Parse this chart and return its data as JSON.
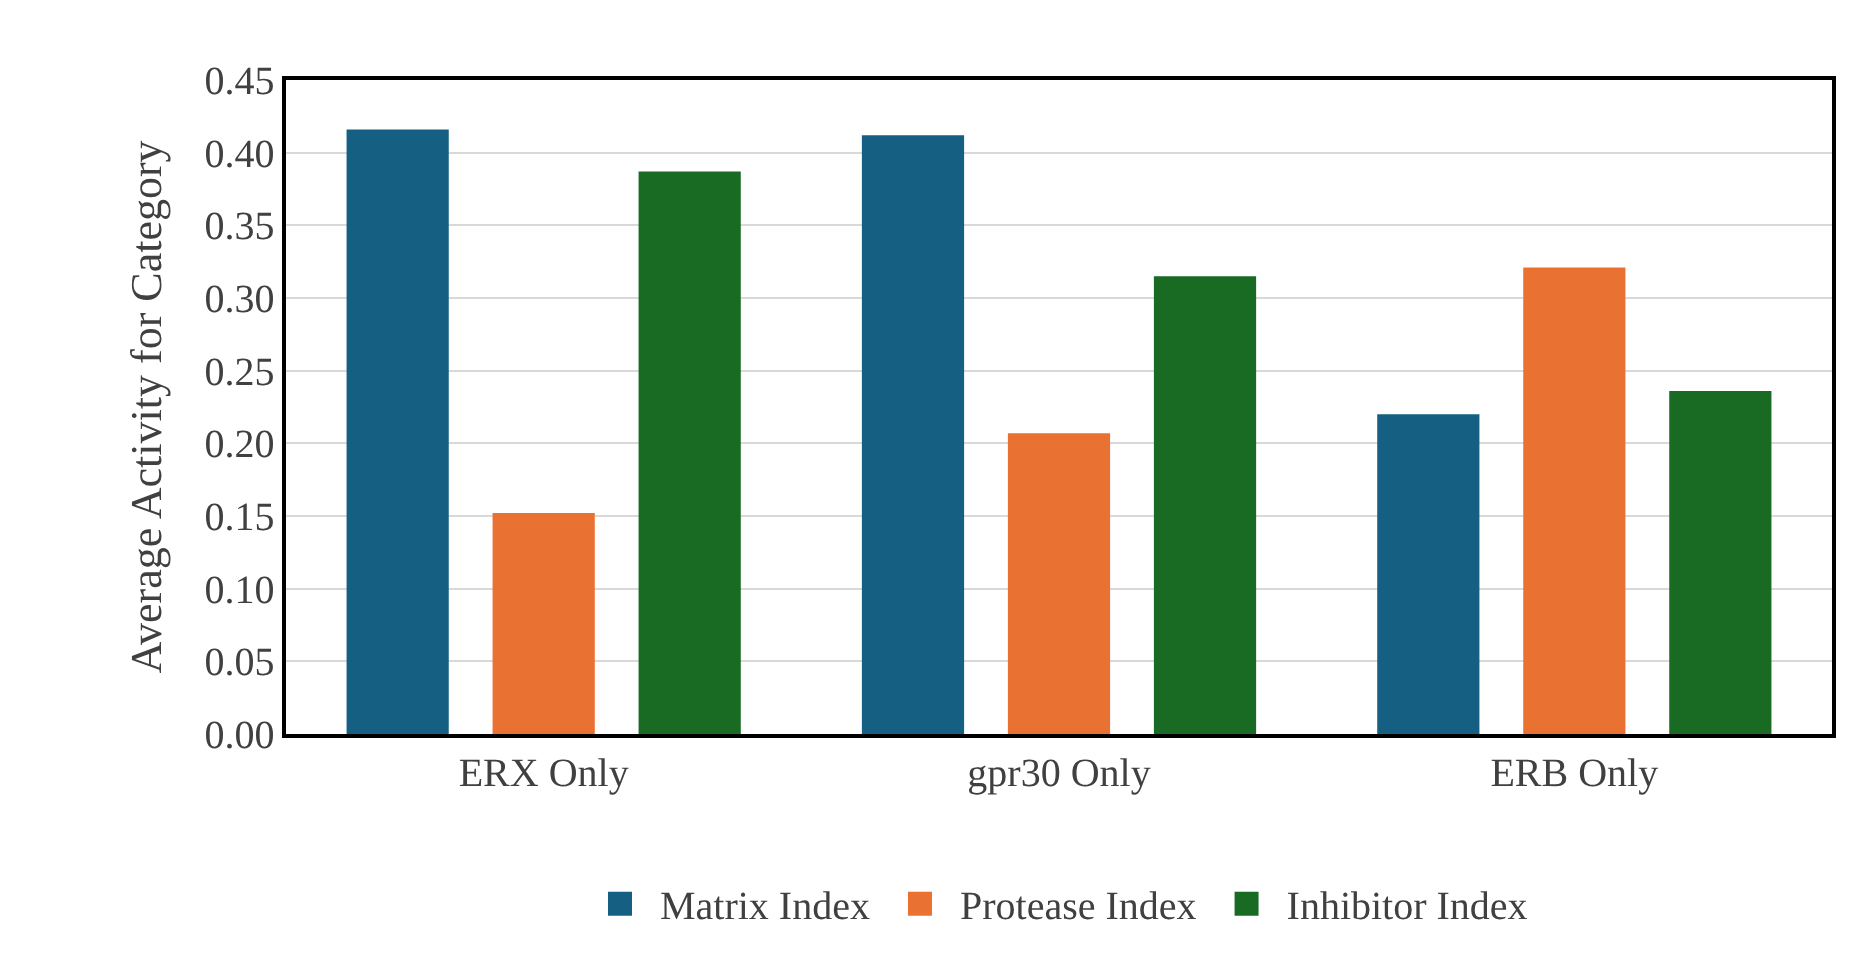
{
  "chart_data": {
    "type": "bar",
    "ylabel": "Average Activity for Category",
    "categories": [
      "ERX Only",
      "gpr30 Only",
      "ERB Only"
    ],
    "series": [
      {
        "name": "Matrix Index",
        "color": "#156082",
        "values": [
          0.416,
          0.412,
          0.22
        ]
      },
      {
        "name": "Protease Index",
        "color": "#e97132",
        "values": [
          0.152,
          0.207,
          0.321
        ]
      },
      {
        "name": "Inhibitor Index",
        "color": "#196b24",
        "values": [
          0.387,
          0.315,
          0.236
        ]
      }
    ],
    "ylim": [
      0,
      0.45
    ],
    "yticks": [
      {
        "value": 0,
        "label": "0.00"
      },
      {
        "value": 0.05,
        "label": "0.05"
      },
      {
        "value": 0.1,
        "label": "0.10"
      },
      {
        "value": 0.15,
        "label": "0.15"
      },
      {
        "value": 0.2,
        "label": "0.20"
      },
      {
        "value": 0.25,
        "label": "0.25"
      },
      {
        "value": 0.3,
        "label": "0.30"
      },
      {
        "value": 0.35,
        "label": "0.35"
      },
      {
        "value": 0.4,
        "label": "0.40"
      },
      {
        "value": 0.45,
        "label": "0.45"
      }
    ],
    "grid": "y",
    "legend": "bottom"
  }
}
